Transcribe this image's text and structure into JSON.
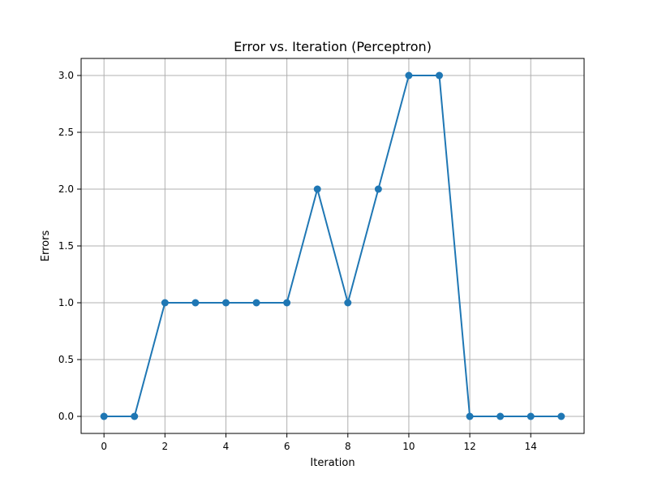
{
  "chart_data": {
    "type": "line",
    "title": "Error vs. Iteration (Perceptron)",
    "xlabel": "Iteration",
    "ylabel": "Errors",
    "x": [
      0,
      1,
      2,
      3,
      4,
      5,
      6,
      7,
      8,
      9,
      10,
      11,
      12,
      13,
      14,
      15
    ],
    "series": [
      {
        "values": [
          0,
          0,
          1,
          1,
          1,
          1,
          1,
          2,
          1,
          2,
          3,
          3,
          0,
          0,
          0,
          0
        ],
        "color": "#1f77b4",
        "marker": "circle"
      }
    ],
    "xticks": [
      0,
      2,
      4,
      6,
      8,
      10,
      12,
      14
    ],
    "yticks": [
      0.0,
      0.5,
      1.0,
      1.5,
      2.0,
      2.5,
      3.0
    ],
    "xtick_labels": [
      "0",
      "2",
      "4",
      "6",
      "8",
      "10",
      "12",
      "14"
    ],
    "ytick_labels": [
      "0.0",
      "0.5",
      "1.0",
      "1.5",
      "2.0",
      "2.5",
      "3.0"
    ],
    "xlim": [
      -0.75,
      15.75
    ],
    "ylim": [
      -0.15,
      3.15
    ],
    "grid": true,
    "legend": "none"
  }
}
